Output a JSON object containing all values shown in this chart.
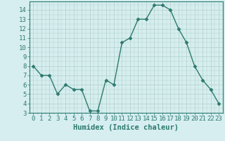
{
  "x": [
    0,
    1,
    2,
    3,
    4,
    5,
    6,
    7,
    8,
    9,
    10,
    11,
    12,
    13,
    14,
    15,
    16,
    17,
    18,
    19,
    20,
    21,
    22,
    23
  ],
  "y": [
    8.0,
    7.0,
    7.0,
    5.0,
    6.0,
    5.5,
    5.5,
    3.2,
    3.2,
    6.5,
    6.0,
    10.5,
    11.0,
    13.0,
    13.0,
    14.5,
    14.5,
    14.0,
    12.0,
    10.5,
    8.0,
    6.5,
    5.5,
    4.0
  ],
  "line_color": "#2d7a6e",
  "marker": "D",
  "marker_size": 2.5,
  "bg_color": "#d6eef0",
  "grid_color": "#b0cfc8",
  "xlabel": "Humidex (Indice chaleur)",
  "xlim": [
    -0.5,
    23.5
  ],
  "ylim": [
    3,
    14.9
  ],
  "yticks": [
    3,
    4,
    5,
    6,
    7,
    8,
    9,
    10,
    11,
    12,
    13,
    14
  ],
  "xticks": [
    0,
    1,
    2,
    3,
    4,
    5,
    6,
    7,
    8,
    9,
    10,
    11,
    12,
    13,
    14,
    15,
    16,
    17,
    18,
    19,
    20,
    21,
    22,
    23
  ],
  "tick_label_fontsize": 6.5,
  "xlabel_fontsize": 7.5,
  "line_width": 1.0
}
